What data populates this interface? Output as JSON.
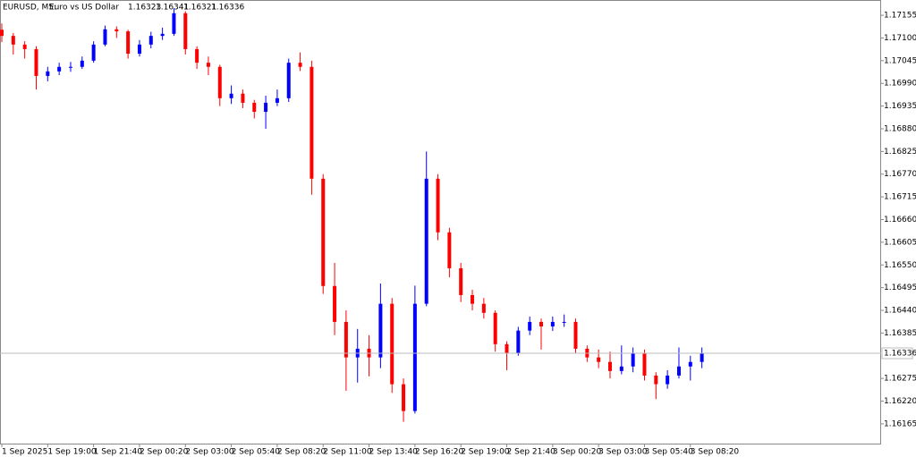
{
  "chart_data": {
    "type": "candlestick",
    "title": "EURUSD, M5:",
    "description": "Euro vs US Dollar",
    "last_bar": {
      "open": 1.16323,
      "high": 1.16341,
      "low": 1.16321,
      "close": 1.16336
    },
    "price_line": 1.16336,
    "up_color": "#0000ff",
    "down_color": "#ff0000",
    "categories": [
      "1 Sep 2025",
      null,
      null,
      null,
      "1 Sep 19:00",
      null,
      null,
      null,
      "1 Sep 21:40",
      null,
      null,
      null,
      "2 Sep 00:20",
      null,
      null,
      null,
      "2 Sep 03:00",
      null,
      null,
      null,
      "2 Sep 05:40",
      null,
      null,
      null,
      "2 Sep 08:20",
      null,
      null,
      null,
      "2 Sep 11:00",
      null,
      null,
      null,
      "2 Sep 13:40",
      null,
      null,
      null,
      "2 Sep 16:20",
      null,
      null,
      null,
      "2 Sep 19:00",
      null,
      null,
      null,
      "2 Sep 21:40",
      null,
      null,
      null,
      "3 Sep 00:20",
      null,
      null,
      null,
      "3 Sep 03:00",
      null,
      null,
      null,
      "3 Sep 05:40",
      null,
      null,
      null,
      "3 Sep 08:20",
      null
    ],
    "open": [
      1.1712,
      1.17105,
      1.17084,
      1.17073,
      1.17008,
      1.17019,
      1.1703,
      1.1703,
      1.17045,
      1.17084,
      1.17121,
      1.17116,
      1.17062,
      1.17084,
      1.17105,
      1.1711,
      1.1716,
      1.17073,
      1.1704,
      1.1703,
      1.16954,
      1.16965,
      1.16943,
      1.16921,
      1.16943,
      1.16954,
      1.1704,
      1.1703,
      1.16759,
      1.16499,
      1.16412,
      1.16326,
      1.16347,
      1.16326,
      1.16456,
      1.16261,
      1.16196,
      1.16456,
      1.16759,
      1.16629,
      1.16542,
      1.16477,
      1.16456,
      1.16434,
      1.16358,
      1.16336,
      1.16391,
      1.16412,
      1.16401,
      1.16412,
      1.16412,
      1.16347,
      1.16326,
      1.16315,
      1.16293,
      1.16304,
      1.16336,
      1.16282,
      1.16261,
      1.16282,
      1.16304,
      1.16315
    ],
    "high": [
      1.17135,
      1.17112,
      1.17092,
      1.1708,
      1.1703,
      1.1704,
      1.17042,
      1.17055,
      1.17092,
      1.1713,
      1.17128,
      1.1712,
      1.17095,
      1.17115,
      1.17125,
      1.17172,
      1.17165,
      1.1708,
      1.17055,
      1.17035,
      1.16985,
      1.16975,
      1.1695,
      1.1696,
      1.16975,
      1.1705,
      1.17065,
      1.17045,
      1.1677,
      1.16555,
      1.1644,
      1.16395,
      1.1638,
      1.16505,
      1.1647,
      1.16275,
      1.165,
      1.16825,
      1.1677,
      1.1664,
      1.16555,
      1.1649,
      1.1647,
      1.1644,
      1.16365,
      1.164,
      1.16425,
      1.1642,
      1.16425,
      1.1643,
      1.1642,
      1.16355,
      1.16345,
      1.1634,
      1.16355,
      1.1635,
      1.16345,
      1.1629,
      1.16295,
      1.1635,
      1.1633,
      1.1635
    ],
    "low": [
      1.1709,
      1.1706,
      1.1705,
      1.16975,
      1.16995,
      1.1701,
      1.17018,
      1.17025,
      1.1704,
      1.1708,
      1.171,
      1.1705,
      1.17055,
      1.17075,
      1.17095,
      1.17105,
      1.1706,
      1.17025,
      1.1701,
      1.16935,
      1.1694,
      1.1693,
      1.16905,
      1.1688,
      1.16935,
      1.16945,
      1.1702,
      1.1672,
      1.1648,
      1.1638,
      1.16245,
      1.16265,
      1.1628,
      1.163,
      1.1624,
      1.1617,
      1.1619,
      1.1645,
      1.1661,
      1.1652,
      1.1646,
      1.1644,
      1.1642,
      1.1634,
      1.16295,
      1.1633,
      1.1638,
      1.16345,
      1.1639,
      1.164,
      1.16335,
      1.16315,
      1.163,
      1.16275,
      1.16285,
      1.1629,
      1.1627,
      1.16225,
      1.1625,
      1.16275,
      1.1627,
      1.163
    ],
    "close": [
      1.17105,
      1.17084,
      1.17073,
      1.17008,
      1.17019,
      1.1703,
      1.1703,
      1.17045,
      1.17084,
      1.17121,
      1.17116,
      1.17062,
      1.17084,
      1.17105,
      1.1711,
      1.1716,
      1.17073,
      1.1704,
      1.1703,
      1.16954,
      1.16965,
      1.16943,
      1.16921,
      1.16943,
      1.16954,
      1.1704,
      1.1703,
      1.16759,
      1.16499,
      1.16412,
      1.16326,
      1.16347,
      1.16326,
      1.16456,
      1.16261,
      1.16196,
      1.16456,
      1.16759,
      1.16629,
      1.16542,
      1.16477,
      1.16456,
      1.16434,
      1.16358,
      1.16336,
      1.16391,
      1.16412,
      1.16401,
      1.16412,
      1.16412,
      1.16347,
      1.16326,
      1.16315,
      1.16293,
      1.16304,
      1.16336,
      1.16282,
      1.16261,
      1.16282,
      1.16304,
      1.16315,
      1.16336
    ],
    "ylim": [
      1.16115,
      1.17192
    ],
    "yticks": [
      1.17155,
      {
        "value": 1.171,
        "label": "1.17100"
      },
      1.17045,
      {
        "value": 1.1699,
        "label": "1.16990"
      },
      1.16935,
      {
        "value": 1.1688,
        "label": "1.16880"
      },
      1.16825,
      {
        "value": 1.1677,
        "label": "1.16770"
      },
      1.16715,
      {
        "value": 1.1666,
        "label": "1.16660"
      },
      1.16605,
      {
        "value": 1.1655,
        "label": "1.16550"
      },
      1.16495,
      {
        "value": 1.1644,
        "label": "1.16440"
      },
      1.16385,
      1.16275,
      {
        "value": 1.1622,
        "label": "1.16220"
      },
      1.16165
    ]
  }
}
